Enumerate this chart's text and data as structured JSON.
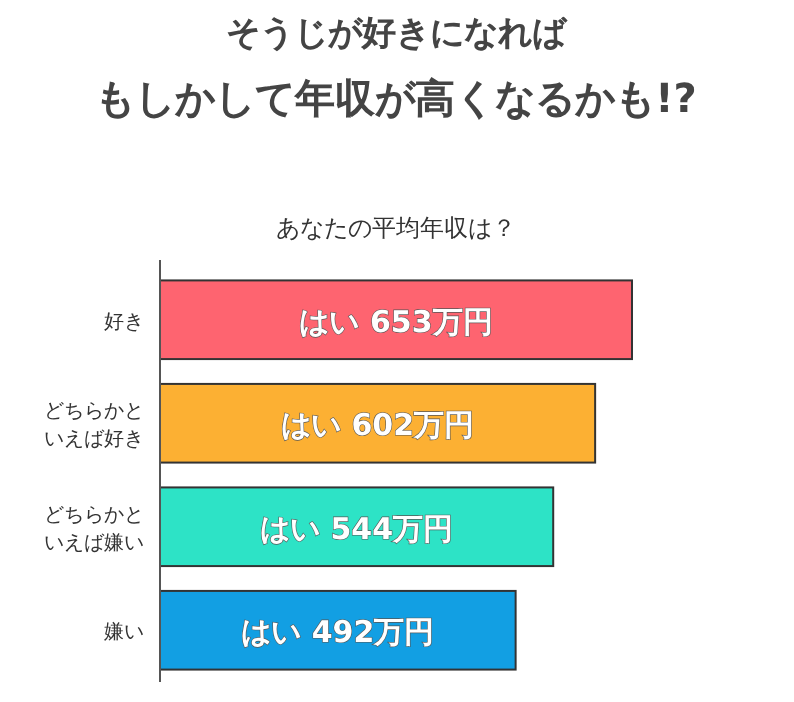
{
  "chart_data": {
    "type": "bar",
    "orientation": "horizontal",
    "title": "そうじが好きになればもしかして年収が高くなるかも!?",
    "subtitle": "あなたの平均年収は？",
    "categories": [
      "好き",
      "どちらかといえば好き",
      "どちらかといえば嫌い",
      "嫌い"
    ],
    "values": [
      653,
      602,
      544,
      492
    ],
    "colors": [
      "#fe6470",
      "#fcb033",
      "#2de3c6",
      "#129fe3"
    ],
    "value_labels": [
      "はい 653万円",
      "はい 602万円",
      "はい 544万円",
      "はい 492万円"
    ]
  }
}
